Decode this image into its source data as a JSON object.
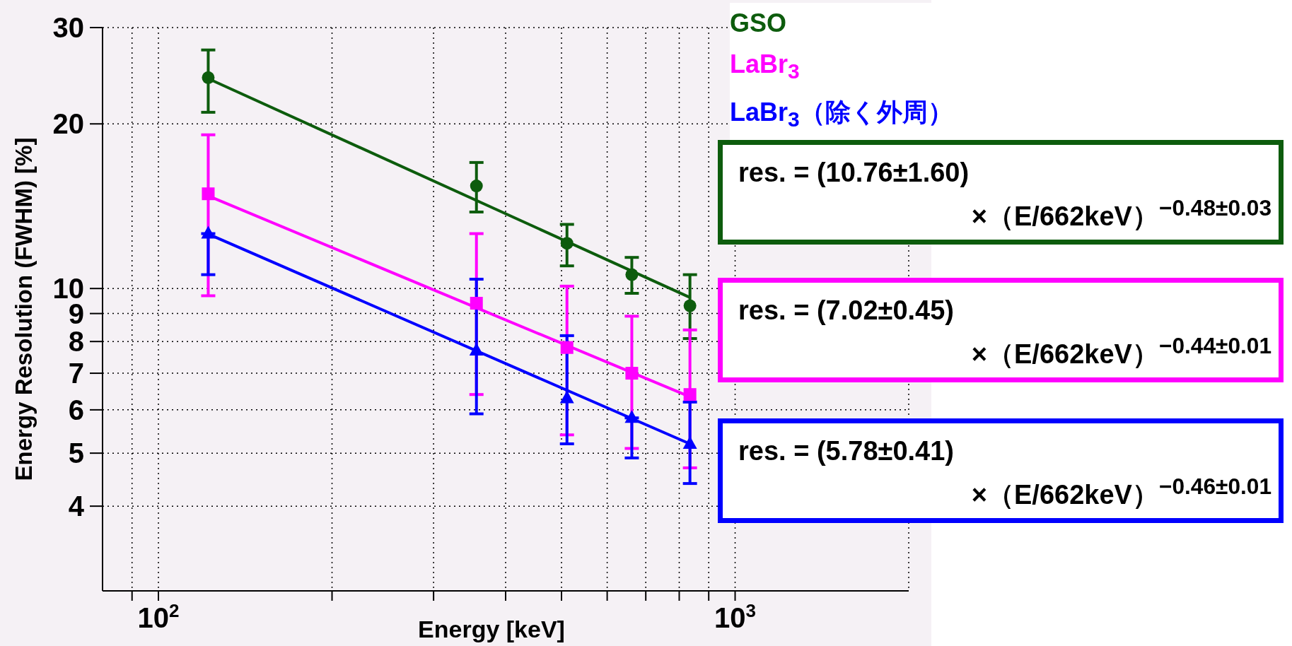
{
  "chart_data": {
    "type": "scatter",
    "xlabel": "Energy [keV]",
    "ylabel": "Energy Resolution (FWHM) [%]",
    "log": "xy",
    "grid": true,
    "legend": "top right",
    "xlim": [
      80,
      2000
    ],
    "ylim": [
      2.8,
      30
    ],
    "xticks": [
      {
        "value": 90,
        "label": null
      },
      {
        "value": 100,
        "label": "10$^{2}$"
      },
      {
        "value": 200,
        "label": null
      },
      {
        "value": 300,
        "label": null
      },
      {
        "value": 400,
        "label": null
      },
      {
        "value": 500,
        "label": null
      },
      {
        "value": 600,
        "label": null
      },
      {
        "value": 700,
        "label": null
      },
      {
        "value": 800,
        "label": null
      },
      {
        "value": 900,
        "label": null
      },
      {
        "value": 1000,
        "label": "10$^{3}$"
      }
    ],
    "yticks": [
      4,
      5,
      6,
      7,
      8,
      9,
      10,
      20,
      30
    ],
    "series": [
      {
        "name": "GSO",
        "color": "#0d5c0d",
        "marker": "circle",
        "x": [
          122,
          356,
          511,
          662,
          835
        ],
        "values": [
          24.3,
          15.4,
          12.1,
          10.6,
          9.3
        ],
        "errors": [
          [
            21.0,
            27.3
          ],
          [
            13.8,
            17.0
          ],
          [
            11.0,
            13.1
          ],
          [
            9.8,
            11.4
          ],
          [
            8.1,
            10.6
          ]
        ]
      },
      {
        "name": "LaBr$_{3}$",
        "color": "#ff00ff",
        "marker": "square",
        "x": [
          122,
          356,
          511,
          662,
          835
        ],
        "values": [
          14.9,
          9.4,
          7.8,
          7.0,
          6.4
        ],
        "errors": [
          [
            9.7,
            19.1
          ],
          [
            6.4,
            12.6
          ],
          [
            5.4,
            10.1
          ],
          [
            5.1,
            8.9
          ],
          [
            4.7,
            8.4
          ]
        ]
      },
      {
        "name": "LaBr$_{3}$（除く外周）",
        "color": "#0000ff",
        "marker": "triangle",
        "x": [
          122,
          356,
          511,
          662,
          835
        ],
        "values": [
          12.6,
          7.7,
          6.3,
          5.8,
          5.2
        ],
        "errors": [
          [
            10.6,
            12.6
          ],
          [
            5.9,
            10.4
          ],
          [
            5.2,
            8.2
          ],
          [
            4.9,
            5.8
          ],
          [
            4.4,
            6.2
          ]
        ]
      },
      {
        "type": "line",
        "color": "#0d5c0d",
        "marker": "none",
        "line_style": "solid",
        "x": [
          122,
          835
        ],
        "values": [
          24.2,
          9.63
        ]
      },
      {
        "type": "line",
        "color": "#ff00ff",
        "marker": "none",
        "line_style": "solid",
        "x": [
          122,
          835
        ],
        "values": [
          14.77,
          6.34
        ]
      },
      {
        "type": "line",
        "color": "#0000ff",
        "marker": "none",
        "line_style": "solid",
        "x": [
          122,
          835
        ],
        "values": [
          12.58,
          5.2
        ]
      }
    ],
    "annotations": [
      "res. = (10.76±1.60)\n×（E/662keV）$^{−0.48±0.03}$",
      "res. = (7.02±0.45)\n×（E/662keV）$^{−0.44±0.01}$",
      "res. = (5.78±0.41)\n×（E/662keV）$^{−0.46±0.01}$"
    ]
  }
}
